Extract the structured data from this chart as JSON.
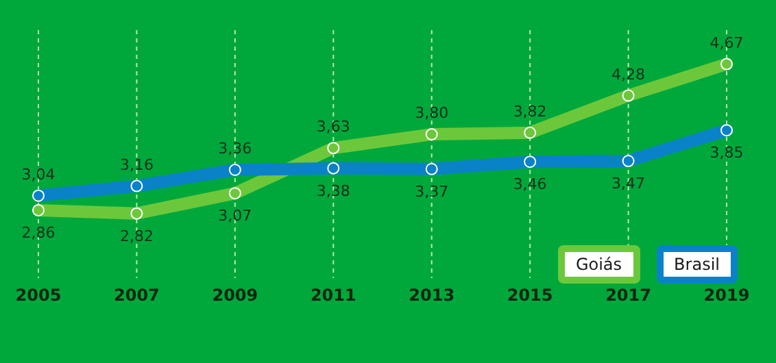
{
  "chart_data": {
    "type": "line",
    "categories": [
      "2005",
      "2007",
      "2009",
      "2011",
      "2013",
      "2015",
      "2017",
      "2019"
    ],
    "series": [
      {
        "name": "Goiás",
        "color": "#6cc83a",
        "values": [
          2.86,
          2.82,
          3.07,
          3.63,
          3.8,
          3.82,
          4.28,
          4.67
        ],
        "value_labels": [
          "2,86",
          "2,82",
          "3,07",
          "3,63",
          "3,80",
          "3,82",
          "4,28",
          "4,67"
        ]
      },
      {
        "name": "Brasil",
        "color": "#0a82c8",
        "values": [
          3.04,
          3.16,
          3.36,
          3.38,
          3.37,
          3.46,
          3.47,
          3.85
        ],
        "value_labels": [
          "3,04",
          "3,16",
          "3,36",
          "3,38",
          "3,37",
          "3,46",
          "3,47",
          "3,85"
        ]
      }
    ],
    "grid": "x",
    "legend": "bottom right",
    "marker": "circle",
    "line_style": "solid"
  }
}
